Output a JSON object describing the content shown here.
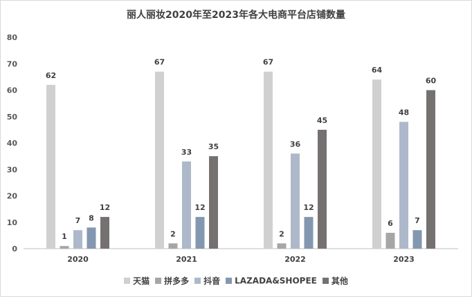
{
  "chart_data": {
    "type": "bar",
    "title": "丽人丽妆2020年至2023年各大电商平台店铺数量",
    "categories": [
      "2020",
      "2021",
      "2022",
      "2023"
    ],
    "series": [
      {
        "name": "天猫",
        "color": "#d0d0d0",
        "values": [
          62,
          67,
          67,
          64
        ]
      },
      {
        "name": "拼多多",
        "color": "#a6a6a6",
        "values": [
          1,
          2,
          2,
          6
        ]
      },
      {
        "name": "抖音",
        "color": "#adb9ca",
        "values": [
          7,
          33,
          36,
          48
        ]
      },
      {
        "name": "LAZADA&SHOPEE",
        "color": "#8497b0",
        "values": [
          8,
          12,
          12,
          7
        ]
      },
      {
        "name": "其他",
        "color": "#767171",
        "values": [
          12,
          35,
          45,
          60
        ]
      }
    ],
    "yticks": [
      0,
      10,
      20,
      30,
      40,
      50,
      60,
      70,
      80
    ],
    "ylim": [
      0,
      80
    ],
    "grid": false,
    "legend": "bottom"
  }
}
